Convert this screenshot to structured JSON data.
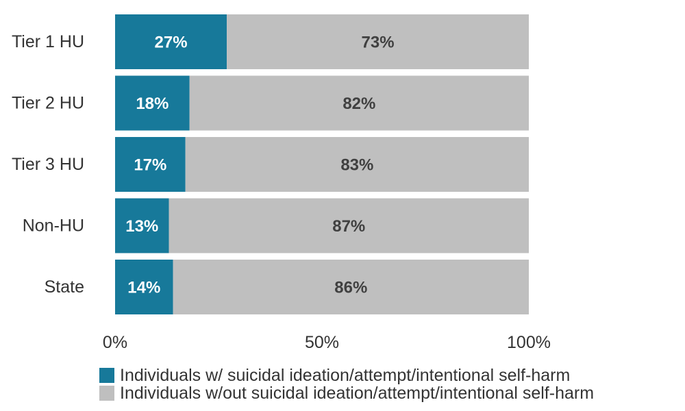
{
  "chart_data": {
    "type": "bar",
    "orientation": "horizontal",
    "stacked": true,
    "categories": [
      "Tier 1 HU",
      "Tier 2 HU",
      "Tier 3 HU",
      "Non-HU",
      "State"
    ],
    "series": [
      {
        "name": "Individuals w/ suicidal ideation/attempt/intentional self-harm",
        "values": [
          27,
          18,
          17,
          13,
          14
        ],
        "labels": [
          "27%",
          "18%",
          "17%",
          "13%",
          "14%"
        ],
        "color": "#17799a",
        "label_color": "#ffffff"
      },
      {
        "name": "Individuals w/out suicidal ideation/attempt/intentional self-harm",
        "values": [
          73,
          82,
          83,
          87,
          86
        ],
        "labels": [
          "73%",
          "82%",
          "83%",
          "87%",
          "86%"
        ],
        "color": "#bfbfbf",
        "label_color": "#404040"
      }
    ],
    "xlim": [
      0,
      100
    ],
    "xticks": [
      0,
      50,
      100
    ],
    "xtick_labels": [
      "0%",
      "50%",
      "100%"
    ],
    "grid": false,
    "legend_position": "bottom"
  }
}
